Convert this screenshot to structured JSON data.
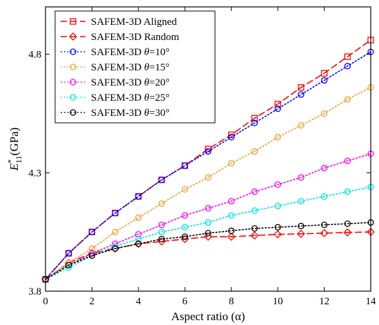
{
  "chart_data": {
    "type": "line",
    "xlabel": "Aspect ratio (α)",
    "ylabel": "E*11 (GPa)",
    "ylabel_main": "E",
    "ylabel_sup": "*",
    "ylabel_sub": "11",
    "ylabel_unit": "(GPa)",
    "xlim": [
      0,
      14
    ],
    "ylim": [
      3.8,
      5.0
    ],
    "x_ticks": [
      "0",
      "2",
      "4",
      "6",
      "8",
      "10",
      "12",
      "14"
    ],
    "y_ticks": [
      "3.8",
      "4.3",
      "4.8"
    ],
    "grid": false,
    "legend_position": "top-left",
    "x": [
      0,
      1,
      2,
      3,
      4,
      5,
      6,
      7,
      8,
      9,
      10,
      11,
      12,
      13,
      14
    ],
    "series": [
      {
        "name": "SAFEM-3D Aligned",
        "color": "#ff0000",
        "line_style": "dashed",
        "marker": "square",
        "values": [
          3.85,
          3.96,
          4.05,
          4.13,
          4.2,
          4.27,
          4.33,
          4.4,
          4.46,
          4.53,
          4.59,
          4.66,
          4.72,
          4.79,
          4.86
        ]
      },
      {
        "name": "SAFEM-3D Random",
        "color": "#ff0000",
        "line_style": "dashed",
        "marker": "diamond",
        "values": [
          3.85,
          3.92,
          3.96,
          3.98,
          4.0,
          4.01,
          4.02,
          4.03,
          4.03,
          4.035,
          4.04,
          4.042,
          4.045,
          4.048,
          4.05
        ]
      },
      {
        "name": "SAFEM-3D θ=10°",
        "name_prefix": "SAFEM-3D ",
        "name_theta": "θ",
        "name_suffix": "=10°",
        "color": "#0000ff",
        "line_style": "dotted",
        "marker": "circle",
        "values": [
          3.85,
          3.96,
          4.05,
          4.13,
          4.2,
          4.27,
          4.33,
          4.39,
          4.45,
          4.51,
          4.57,
          4.63,
          4.69,
          4.75,
          4.81
        ]
      },
      {
        "name": "SAFEM-3D θ=15°",
        "name_prefix": "SAFEM-3D ",
        "name_theta": "θ",
        "name_suffix": "=15°",
        "color": "#f0a030",
        "line_style": "dotted",
        "marker": "circle",
        "values": [
          3.85,
          3.92,
          3.98,
          4.05,
          4.11,
          4.17,
          4.23,
          4.28,
          4.34,
          4.39,
          4.45,
          4.5,
          4.55,
          4.61,
          4.66
        ]
      },
      {
        "name": "SAFEM-3D θ=20°",
        "name_prefix": "SAFEM-3D ",
        "name_theta": "θ",
        "name_suffix": "=20°",
        "color": "#ff00ff",
        "line_style": "dotted",
        "marker": "circle",
        "values": [
          3.85,
          3.91,
          3.96,
          4.0,
          4.04,
          4.08,
          4.12,
          4.15,
          4.18,
          4.22,
          4.25,
          4.28,
          4.32,
          4.35,
          4.38
        ]
      },
      {
        "name": "SAFEM-3D θ=25°",
        "name_prefix": "SAFEM-3D ",
        "name_theta": "θ",
        "name_suffix": "=25°",
        "color": "#00e5e5",
        "line_style": "dotted",
        "marker": "circle",
        "values": [
          3.85,
          3.9,
          3.95,
          3.99,
          4.02,
          4.05,
          4.07,
          4.09,
          4.12,
          4.14,
          4.16,
          4.18,
          4.2,
          4.22,
          4.24
        ]
      },
      {
        "name": "SAFEM-3D θ=30°",
        "name_prefix": "SAFEM-3D ",
        "name_theta": "θ",
        "name_suffix": "=30°",
        "color": "#000000",
        "line_style": "dotted",
        "marker": "circle",
        "values": [
          3.85,
          3.91,
          3.95,
          3.98,
          4.0,
          4.02,
          4.03,
          4.045,
          4.055,
          4.065,
          4.07,
          4.075,
          4.08,
          4.085,
          4.09
        ]
      }
    ]
  }
}
